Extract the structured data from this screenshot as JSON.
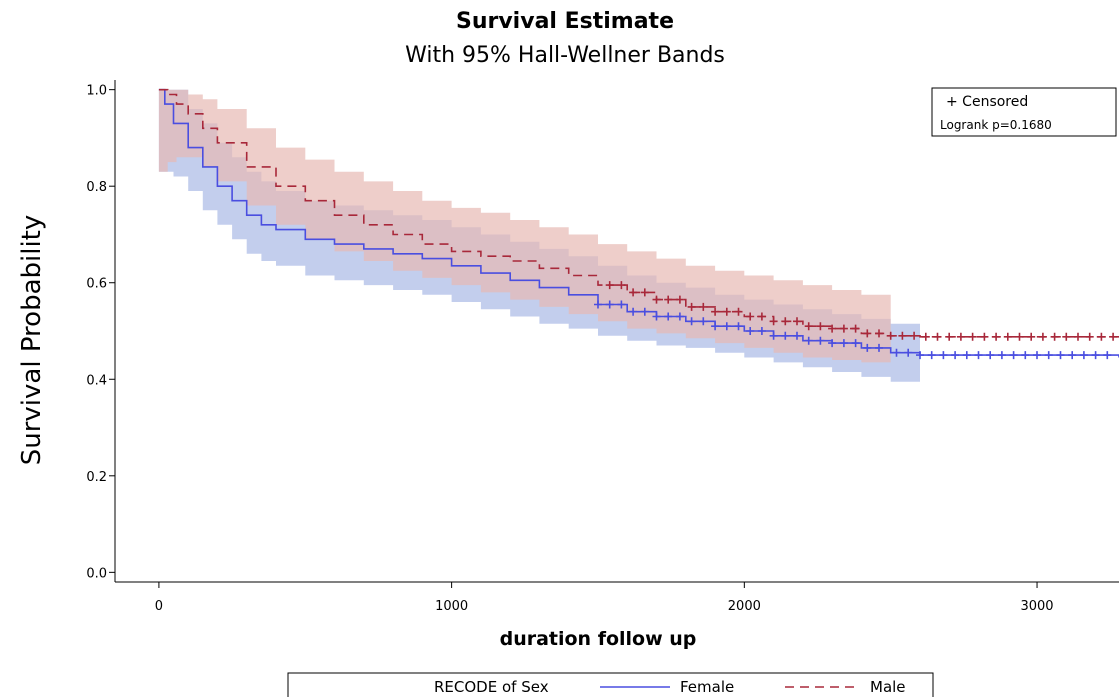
{
  "chart_data": {
    "type": "line",
    "title": "Survival Estimate",
    "subtitle": "With 95% Hall-Wellner Bands",
    "xlabel": "duration follow up",
    "ylabel": "Survival Probability",
    "xlim": [
      -150,
      3280
    ],
    "ylim": [
      -0.02,
      1.02
    ],
    "x_ticks": [
      0,
      1000,
      2000,
      3000
    ],
    "x_tick_labels": [
      "0",
      "1000",
      "2000",
      "3000"
    ],
    "y_ticks": [
      0.0,
      0.2,
      0.4,
      0.6,
      0.8,
      1.0
    ],
    "y_tick_labels": [
      "0.0",
      "0.2",
      "0.4",
      "0.6",
      "0.8",
      "1.0"
    ],
    "grid": false,
    "inset": {
      "censored_label": "+ Censored",
      "logrank_label": "Logrank p=0.1680",
      "placement": "top-right"
    },
    "legend": {
      "title": "RECODE of Sex",
      "placement": "bottom"
    },
    "series": [
      {
        "name": "Female",
        "color": "#4a4ee0",
        "band_color": "#b8c6ea",
        "dash": "solid",
        "x": [
          0,
          20,
          50,
          100,
          150,
          200,
          250,
          300,
          350,
          400,
          500,
          600,
          700,
          800,
          900,
          1000,
          1100,
          1200,
          1300,
          1400,
          1500,
          1600,
          1700,
          1800,
          1900,
          2000,
          2100,
          2200,
          2300,
          2400,
          2500,
          2600,
          3280
        ],
        "values": [
          1.0,
          0.97,
          0.93,
          0.88,
          0.84,
          0.8,
          0.77,
          0.74,
          0.72,
          0.71,
          0.69,
          0.68,
          0.67,
          0.66,
          0.65,
          0.635,
          0.62,
          0.605,
          0.59,
          0.575,
          0.555,
          0.54,
          0.53,
          0.52,
          0.51,
          0.5,
          0.49,
          0.48,
          0.475,
          0.465,
          0.455,
          0.45,
          0.445
        ],
        "lower": [
          0.83,
          0.83,
          0.82,
          0.79,
          0.75,
          0.72,
          0.69,
          0.66,
          0.645,
          0.635,
          0.615,
          0.605,
          0.595,
          0.585,
          0.575,
          0.56,
          0.545,
          0.53,
          0.515,
          0.505,
          0.49,
          0.48,
          0.47,
          0.465,
          0.455,
          0.445,
          0.435,
          0.425,
          0.415,
          0.405,
          0.395,
          0.385,
          null
        ],
        "upper": [
          1.0,
          1.0,
          1.0,
          0.96,
          0.93,
          0.89,
          0.86,
          0.83,
          0.81,
          0.79,
          0.77,
          0.76,
          0.75,
          0.74,
          0.73,
          0.715,
          0.7,
          0.685,
          0.67,
          0.655,
          0.635,
          0.615,
          0.6,
          0.59,
          0.575,
          0.565,
          0.555,
          0.545,
          0.535,
          0.525,
          0.515,
          0.505,
          null
        ],
        "censored": [
          1500,
          1540,
          1580,
          1620,
          1660,
          1700,
          1740,
          1780,
          1820,
          1860,
          1900,
          1940,
          1980,
          2020,
          2060,
          2100,
          2140,
          2180,
          2220,
          2260,
          2300,
          2340,
          2380,
          2420,
          2460,
          2520,
          2560,
          2600,
          2640,
          2680,
          2720,
          2760,
          2800,
          2840,
          2880,
          2920,
          2960,
          3000,
          3040,
          3080,
          3120,
          3160,
          3200,
          3240
        ]
      },
      {
        "name": "Male",
        "color": "#a8283a",
        "band_color": "#e7b9b3",
        "dash": "dashed",
        "x": [
          0,
          30,
          60,
          100,
          150,
          200,
          300,
          400,
          500,
          600,
          700,
          800,
          900,
          1000,
          1100,
          1200,
          1300,
          1400,
          1500,
          1600,
          1700,
          1800,
          1900,
          2000,
          2100,
          2200,
          2300,
          2400,
          2500,
          2600,
          3280
        ],
        "values": [
          1.0,
          0.99,
          0.97,
          0.95,
          0.92,
          0.89,
          0.84,
          0.8,
          0.77,
          0.74,
          0.72,
          0.7,
          0.68,
          0.665,
          0.655,
          0.645,
          0.63,
          0.615,
          0.595,
          0.58,
          0.565,
          0.55,
          0.54,
          0.53,
          0.52,
          0.51,
          0.505,
          0.495,
          0.49,
          0.488,
          0.488
        ],
        "lower": [
          0.83,
          0.85,
          0.86,
          0.86,
          0.84,
          0.81,
          0.76,
          0.72,
          0.69,
          0.665,
          0.645,
          0.625,
          0.61,
          0.595,
          0.58,
          0.565,
          0.55,
          0.535,
          0.52,
          0.505,
          0.495,
          0.485,
          0.475,
          0.465,
          0.455,
          0.445,
          0.44,
          0.435,
          0.425,
          null,
          null
        ],
        "upper": [
          1.0,
          1.0,
          1.0,
          0.99,
          0.98,
          0.96,
          0.92,
          0.88,
          0.855,
          0.83,
          0.81,
          0.79,
          0.77,
          0.755,
          0.745,
          0.73,
          0.715,
          0.7,
          0.68,
          0.665,
          0.65,
          0.635,
          0.625,
          0.615,
          0.605,
          0.595,
          0.585,
          0.575,
          0.56,
          null,
          null
        ],
        "censored": [
          1540,
          1580,
          1620,
          1660,
          1700,
          1740,
          1780,
          1820,
          1860,
          1900,
          1940,
          1980,
          2020,
          2060,
          2100,
          2140,
          2180,
          2220,
          2260,
          2300,
          2340,
          2380,
          2420,
          2460,
          2500,
          2540,
          2580,
          2620,
          2660,
          2700,
          2740,
          2780,
          2820,
          2860,
          2900,
          2940,
          2980,
          3020,
          3060,
          3100,
          3140,
          3180,
          3220,
          3260
        ]
      }
    ]
  }
}
